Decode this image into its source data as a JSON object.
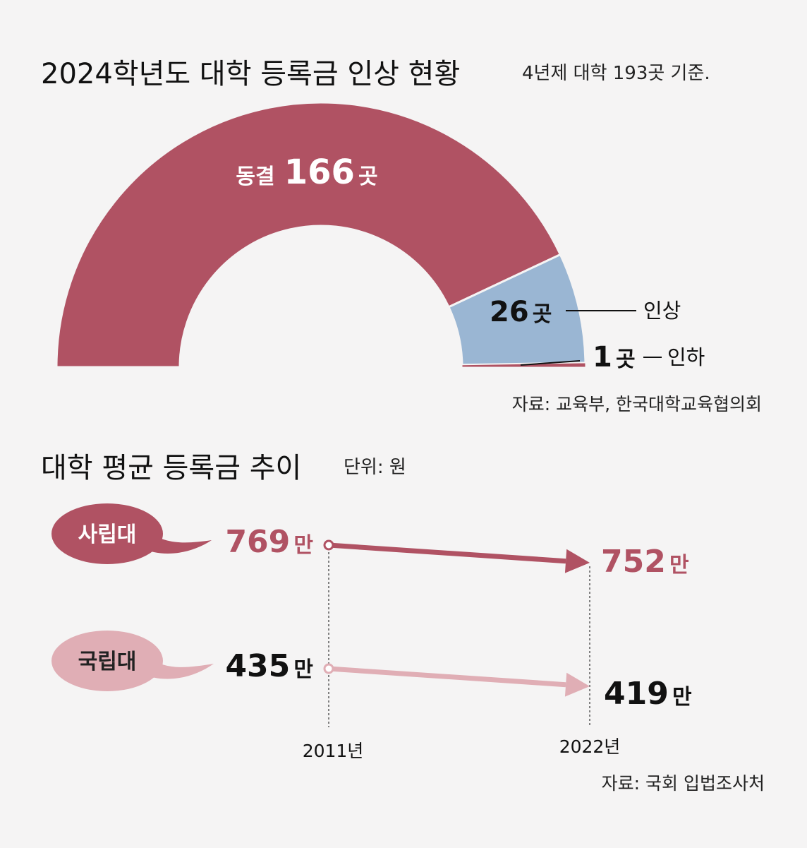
{
  "section1": {
    "title": "2024학년도 대학 등록금 인상 현황",
    "subtitle": "4년제 대학 193곳 기준.",
    "source": "자료: 교육부, 한국대학교육협의회"
  },
  "section2": {
    "title": "대학 평균 등록금 추이",
    "unit": "단위: 원",
    "source": "자료: 국회 입법조사처"
  },
  "colors": {
    "frozen": "#b05263",
    "raised": "#9ab6d3",
    "lowered": "#b05263",
    "private": "#b05263",
    "national": "#e0aeb5",
    "background": "#f5f4f4"
  },
  "chart_data": [
    {
      "type": "pie",
      "variant": "semicircle-donut",
      "total": 193,
      "slices": [
        {
          "name": "동결",
          "value": 166,
          "label_name": "동결",
          "label_value": "166",
          "label_unit": "곳"
        },
        {
          "name": "인상",
          "value": 26,
          "label_value": "26",
          "label_unit": "곳",
          "callout": "인상"
        },
        {
          "name": "인하",
          "value": 1,
          "label_value": "1",
          "label_unit": "곳",
          "callout": "인하"
        }
      ]
    },
    {
      "type": "line",
      "x": [
        "2011년",
        "2022년"
      ],
      "series": [
        {
          "name": "사립대",
          "values": [
            769,
            752
          ],
          "labels": [
            "769",
            "752"
          ],
          "unit": "만"
        },
        {
          "name": "국립대",
          "values": [
            435,
            419
          ],
          "labels": [
            "435",
            "419"
          ],
          "unit": "만"
        }
      ]
    }
  ]
}
